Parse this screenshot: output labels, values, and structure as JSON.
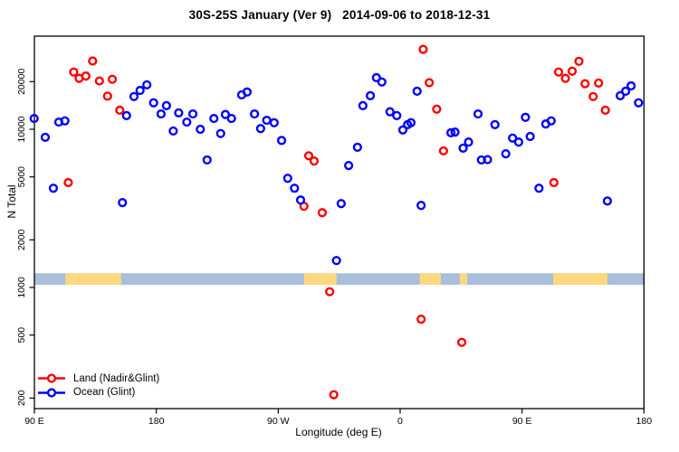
{
  "chart_data": {
    "type": "scatter",
    "title": "30S-25S January (Ver 9)   2014-09-06 to 2018-12-31",
    "xlabel": "Longitude (deg E)",
    "ylabel": "N Total",
    "x_axis": {
      "range_degE": [
        90,
        540
      ],
      "ticks": [
        {
          "lon": 90,
          "label": "90 E"
        },
        {
          "lon": 180,
          "label": "180"
        },
        {
          "lon": 270,
          "label": "90 W"
        },
        {
          "lon": 360,
          "label": "0"
        },
        {
          "lon": 450,
          "label": "90 E"
        },
        {
          "lon": 540,
          "label": "180"
        }
      ]
    },
    "y_axis": {
      "scale": "log",
      "range": [
        170,
        39000
      ],
      "ticks": [
        {
          "value": 200,
          "label": "200"
        },
        {
          "value": 500,
          "label": "500"
        },
        {
          "value": 1000,
          "label": "1000"
        },
        {
          "value": 2000,
          "label": "2000"
        },
        {
          "value": 5000,
          "label": "5000"
        },
        {
          "value": 10000,
          "label": "10000"
        },
        {
          "value": 20000,
          "label": "20000"
        }
      ]
    },
    "legend_position": "bottom-left",
    "series": [
      {
        "name": "Land (Nadir&Glint)",
        "color": "#FF0000",
        "marker": "open-circle",
        "points": [
          [
            133,
            27000
          ],
          [
            119,
            23000
          ],
          [
            123,
            21000
          ],
          [
            128,
            21700
          ],
          [
            138,
            20200
          ],
          [
            147.5,
            20700
          ],
          [
            144,
            16200
          ],
          [
            153,
            13200
          ],
          [
            115,
            4600
          ],
          [
            292.5,
            6800
          ],
          [
            296.5,
            6300
          ],
          [
            289,
            3260
          ],
          [
            302.5,
            2970
          ],
          [
            308,
            940
          ],
          [
            311,
            210
          ],
          [
            375.5,
            630
          ],
          [
            405.5,
            450
          ],
          [
            377,
            32000
          ],
          [
            381.5,
            19700
          ],
          [
            387,
            13400
          ],
          [
            392,
            7300
          ],
          [
            477,
            23000
          ],
          [
            482,
            21000
          ],
          [
            487,
            23300
          ],
          [
            492,
            26900
          ],
          [
            496.5,
            19400
          ],
          [
            506.5,
            19600
          ],
          [
            502.5,
            16100
          ],
          [
            511.5,
            13200
          ],
          [
            473.5,
            4600
          ]
        ]
      },
      {
        "name": "Ocean (Glint)",
        "color": "#0000FF",
        "marker": "open-circle",
        "points": [
          [
            89.8,
            11700
          ],
          [
            108,
            11100
          ],
          [
            112.5,
            11300
          ],
          [
            98,
            8900
          ],
          [
            104,
            4240
          ],
          [
            158,
            12200
          ],
          [
            163.5,
            16100
          ],
          [
            168,
            17600
          ],
          [
            173,
            19100
          ],
          [
            178,
            14700
          ],
          [
            183.5,
            12500
          ],
          [
            187.5,
            14100
          ],
          [
            192.5,
            9750
          ],
          [
            196.5,
            12700
          ],
          [
            202.5,
            11100
          ],
          [
            207,
            12500
          ],
          [
            155,
            3440
          ],
          [
            212.5,
            10000
          ],
          [
            217.5,
            6400
          ],
          [
            222.5,
            11700
          ],
          [
            227.5,
            9400
          ],
          [
            231,
            12400
          ],
          [
            235.5,
            11700
          ],
          [
            243,
            16500
          ],
          [
            247,
            17200
          ],
          [
            252.5,
            12500
          ],
          [
            257,
            10100
          ],
          [
            261.5,
            11400
          ],
          [
            267,
            11000
          ],
          [
            272.5,
            8500
          ],
          [
            277,
            4900
          ],
          [
            282,
            4240
          ],
          [
            286.5,
            3570
          ],
          [
            313,
            1480
          ],
          [
            316.5,
            3390
          ],
          [
            322,
            5900
          ],
          [
            328.5,
            7700
          ],
          [
            332.5,
            14100
          ],
          [
            338,
            16300
          ],
          [
            342.5,
            21200
          ],
          [
            346.5,
            19900
          ],
          [
            352.5,
            12900
          ],
          [
            357.5,
            12200
          ],
          [
            362,
            9900
          ],
          [
            365.5,
            10700
          ],
          [
            368,
            11000
          ],
          [
            372.5,
            17400
          ],
          [
            375.5,
            3300
          ],
          [
            397.5,
            9500
          ],
          [
            400.5,
            9600
          ],
          [
            406.5,
            7600
          ],
          [
            410.5,
            8300
          ],
          [
            417.5,
            12500
          ],
          [
            420,
            6400
          ],
          [
            424.5,
            6430
          ],
          [
            430,
            10700
          ],
          [
            438,
            7000
          ],
          [
            443,
            8800
          ],
          [
            447.5,
            8300
          ],
          [
            452.5,
            11900
          ],
          [
            456,
            9000
          ],
          [
            462.5,
            4240
          ],
          [
            467.5,
            10800
          ],
          [
            471.5,
            11300
          ],
          [
            513,
            3520
          ],
          [
            522.5,
            16300
          ],
          [
            526.5,
            17400
          ],
          [
            530.5,
            18800
          ],
          [
            536,
            14700
          ]
        ]
      }
    ],
    "coastline_band": {
      "description": "horizontal map strip showing land/ocean along the 30S-25S zone",
      "ocean_color": "#A9BEDB",
      "land_color": "#FDD87E",
      "value_range": [
        1040,
        1230
      ],
      "land_segments_degE": [
        [
          113,
          154
        ],
        [
          289,
          313
        ],
        [
          374.5,
          390
        ],
        [
          404,
          409.5
        ],
        [
          473,
          513
        ]
      ]
    }
  }
}
